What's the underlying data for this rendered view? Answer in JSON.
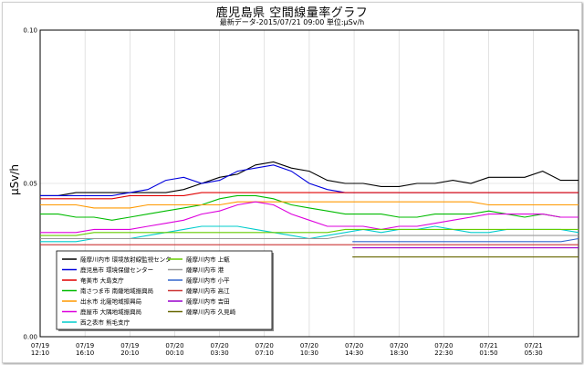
{
  "page": {
    "title": "鹿児島県 空間線量率グラフ",
    "subtitle": "最新データ-2015/07/21 09:00  単位:μSv/h"
  },
  "chart_data": {
    "type": "line",
    "title": "鹿児島県 空間線量率グラフ",
    "subtitle": "最新データ-2015/07/21 09:00  単位:μSv/h",
    "ylabel": "μSv/h",
    "xlabel": "",
    "ylim": [
      0,
      0.1
    ],
    "grid": true,
    "y_ticks": [
      "0.00",
      "0.05",
      "0.10"
    ],
    "x_ticks": [
      [
        "07/19",
        "12:10"
      ],
      [
        "07/19",
        "16:10"
      ],
      [
        "07/19",
        "20:10"
      ],
      [
        "07/20",
        "00:10"
      ],
      [
        "07/20",
        "03:30"
      ],
      [
        "07/20",
        "07:10"
      ],
      [
        "07/20",
        "10:30"
      ],
      [
        "07/20",
        "14:30"
      ],
      [
        "07/20",
        "18:30"
      ],
      [
        "07/20",
        "22:30"
      ],
      [
        "07/21",
        "01:50"
      ],
      [
        "07/21",
        "05:30"
      ]
    ],
    "legend_placement": "bottom-left",
    "series": [
      {
        "name": "薩摩川内市 環境放射線監視センター",
        "color": "#000000",
        "start": 0.0,
        "values": [
          0.046,
          0.046,
          0.047,
          0.047,
          0.047,
          0.047,
          0.047,
          0.047,
          0.048,
          0.05,
          0.052,
          0.053,
          0.056,
          0.057,
          0.055,
          0.054,
          0.051,
          0.05,
          0.05,
          0.049,
          0.049,
          0.05,
          0.05,
          0.051,
          0.05,
          0.052,
          0.052,
          0.052,
          0.054,
          0.051,
          0.051
        ]
      },
      {
        "name": "鹿児島市 環境保健センター",
        "color": "#0000dd",
        "start": 0.0,
        "values": [
          0.046,
          0.046,
          0.046,
          0.046,
          0.046,
          0.047,
          0.048,
          0.051,
          0.052,
          0.05,
          0.051,
          0.054,
          0.055,
          0.056,
          0.054,
          0.05,
          0.048,
          0.047,
          0.047,
          0.047,
          0.047,
          0.047,
          0.047,
          0.047,
          0.047,
          0.047,
          0.047,
          0.047,
          0.047,
          0.047,
          0.047
        ]
      },
      {
        "name": "奄美市 大島支庁",
        "color": "#e00000",
        "start": 0.0,
        "values": [
          0.045,
          0.045,
          0.045,
          0.045,
          0.045,
          0.046,
          0.046,
          0.046,
          0.046,
          0.047,
          0.047,
          0.047,
          0.047,
          0.047,
          0.047,
          0.047,
          0.047,
          0.047,
          0.047,
          0.047,
          0.047,
          0.047,
          0.047,
          0.047,
          0.047,
          0.047,
          0.047,
          0.047,
          0.047,
          0.047,
          0.047
        ]
      },
      {
        "name": "南さつま市 南薩地域振興局",
        "color": "#00bb00",
        "start": 0.0,
        "values": [
          0.04,
          0.04,
          0.039,
          0.039,
          0.038,
          0.039,
          0.04,
          0.041,
          0.042,
          0.043,
          0.045,
          0.046,
          0.046,
          0.045,
          0.043,
          0.042,
          0.041,
          0.04,
          0.04,
          0.04,
          0.039,
          0.039,
          0.04,
          0.04,
          0.04,
          0.041,
          0.04,
          0.039,
          0.04,
          0.039,
          0.039
        ]
      },
      {
        "name": "出水市 北薩地域振興局",
        "color": "#ff9900",
        "start": 0.0,
        "values": [
          0.043,
          0.043,
          0.043,
          0.042,
          0.042,
          0.042,
          0.043,
          0.043,
          0.043,
          0.043,
          0.043,
          0.044,
          0.044,
          0.044,
          0.044,
          0.044,
          0.044,
          0.044,
          0.044,
          0.044,
          0.044,
          0.044,
          0.044,
          0.044,
          0.044,
          0.043,
          0.043,
          0.043,
          0.043,
          0.043,
          0.043
        ]
      },
      {
        "name": "鹿屋市 大隅地域振興局",
        "color": "#dd00dd",
        "start": 0.0,
        "values": [
          0.034,
          0.034,
          0.034,
          0.035,
          0.035,
          0.035,
          0.036,
          0.037,
          0.038,
          0.04,
          0.041,
          0.043,
          0.044,
          0.043,
          0.04,
          0.038,
          0.036,
          0.036,
          0.036,
          0.035,
          0.036,
          0.036,
          0.037,
          0.038,
          0.039,
          0.04,
          0.04,
          0.04,
          0.04,
          0.039,
          0.039
        ]
      },
      {
        "name": "西之表市 熊毛支庁",
        "color": "#00cccc",
        "start": 0.0,
        "values": [
          0.031,
          0.031,
          0.031,
          0.032,
          0.032,
          0.032,
          0.033,
          0.034,
          0.035,
          0.036,
          0.036,
          0.036,
          0.035,
          0.034,
          0.033,
          0.032,
          0.033,
          0.034,
          0.035,
          0.034,
          0.035,
          0.035,
          0.036,
          0.035,
          0.034,
          0.034,
          0.035,
          0.035,
          0.035,
          0.035,
          0.034
        ]
      },
      {
        "name": "薩摩川内市 上甑",
        "color": "#66cc00",
        "start": 0.0,
        "values": [
          0.033,
          0.033,
          0.033,
          0.034,
          0.034,
          0.034,
          0.034,
          0.034,
          0.034,
          0.034,
          0.034,
          0.034,
          0.034,
          0.034,
          0.034,
          0.034,
          0.034,
          0.035,
          0.035,
          0.035,
          0.035,
          0.035,
          0.035,
          0.035,
          0.035,
          0.035,
          0.035,
          0.035,
          0.035,
          0.035,
          0.035
        ]
      },
      {
        "name": "薩摩川内市 港",
        "color": "#999999",
        "start": 0.0,
        "values": [
          0.032,
          0.032,
          0.032,
          0.032,
          0.032,
          0.032,
          0.032,
          0.032,
          0.032,
          0.032,
          0.032,
          0.032,
          0.032,
          0.032,
          0.032,
          0.032,
          0.032,
          0.033,
          0.033,
          0.033,
          0.033,
          0.033,
          0.033,
          0.033,
          0.033,
          0.033,
          0.033,
          0.033,
          0.033,
          0.033,
          0.033
        ]
      },
      {
        "name": "薩摩川内市 小平",
        "color": "#3366cc",
        "start": 0.58,
        "values": [
          0.031,
          0.031,
          0.031,
          0.031,
          0.031,
          0.031,
          0.031,
          0.031,
          0.031,
          0.031,
          0.031,
          0.031,
          0.031,
          0.032
        ]
      },
      {
        "name": "薩摩川内市 高江",
        "color": "#cc3333",
        "start": 0.0,
        "values": [
          0.03,
          0.03,
          0.03,
          0.03,
          0.03,
          0.03,
          0.03,
          0.03,
          0.03,
          0.03,
          0.03,
          0.03,
          0.03,
          0.03,
          0.03,
          0.03,
          0.03,
          0.03,
          0.03,
          0.03,
          0.03,
          0.03,
          0.03,
          0.03,
          0.03,
          0.03,
          0.03,
          0.03,
          0.03,
          0.03,
          0.03
        ]
      },
      {
        "name": "薩摩川内市 吉田",
        "color": "#9900cc",
        "start": 0.58,
        "values": [
          0.029,
          0.029,
          0.029,
          0.029,
          0.029,
          0.029,
          0.029,
          0.029,
          0.029,
          0.029,
          0.029,
          0.029,
          0.029,
          0.029
        ]
      },
      {
        "name": "薩摩川内市 久見崎",
        "color": "#666600",
        "start": 0.58,
        "values": [
          0.026,
          0.026,
          0.026,
          0.026,
          0.026,
          0.026,
          0.026,
          0.026,
          0.026,
          0.026,
          0.026,
          0.026,
          0.026,
          0.026
        ]
      }
    ]
  }
}
